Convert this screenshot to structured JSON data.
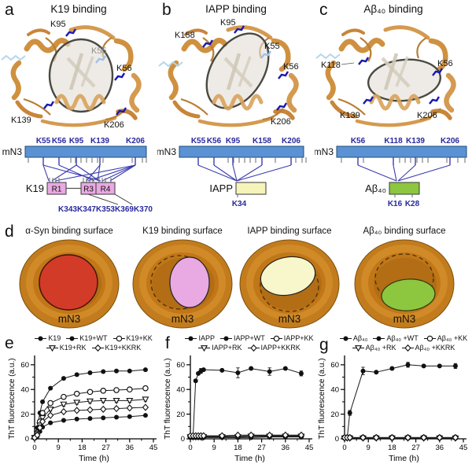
{
  "figure_type": "multi-panel scientific figure",
  "panel_letters": [
    "a",
    "b",
    "c",
    "d",
    "e",
    "f",
    "g"
  ],
  "colors": {
    "bar_blue": "#5b92d4",
    "bar_border": "#1f4e79",
    "line_blue": "#3b3bb0",
    "residue_blue": "#28289e",
    "ribbon_orange": "#d59a50",
    "k19_pink": "#e9a9e2",
    "iapp_yellow": "#f6f3bb",
    "abeta_green": "#8dc63f",
    "donut_orange": "#c8831f",
    "alpha_syn_red": "#d23b28",
    "highlight_ellipse_stroke": "#4a4a42"
  },
  "panel_a": {
    "title": "K19 binding",
    "structure_labels": [
      "K95",
      "K55",
      "K56",
      "K139",
      "K206"
    ],
    "schematic": {
      "protein_label": "mN3",
      "residues": [
        "K55",
        "K56",
        "K95",
        "K139",
        "K206"
      ],
      "ligand_label": "K19",
      "domains": [
        "R1",
        "R3",
        "R4"
      ],
      "bottom_labels": [
        "K343",
        "K347",
        "K353",
        "K369",
        "K370"
      ]
    }
  },
  "panel_b": {
    "title": "IAPP binding",
    "structure_labels": [
      "K95",
      "K158",
      "K55",
      "K56",
      "K206"
    ],
    "schematic": {
      "protein_label": "mN3",
      "residues": [
        "K55",
        "K56",
        "K95",
        "K158",
        "K206"
      ],
      "ligand_label": "IAPP",
      "bottom_labels": [
        "K34"
      ]
    }
  },
  "panel_c": {
    "title": "Aβ₄₀ binding",
    "structure_labels": [
      "K118",
      "K56",
      "K139",
      "K206"
    ],
    "schematic": {
      "protein_label": "mN3",
      "residues": [
        "K56",
        "K118",
        "K139",
        "K206"
      ],
      "ligand_label": "Aβ₄₀",
      "bottom_labels": [
        "K16",
        "K28"
      ]
    }
  },
  "panel_d": {
    "items": [
      {
        "title": "α-Syn binding surface",
        "core_label": "mN3",
        "surface_color": "#d23b28",
        "variant": "alpha"
      },
      {
        "title": "K19 binding surface",
        "core_label": "mN3",
        "surface_color": "#e9a9e2",
        "variant": "k19"
      },
      {
        "title": "IAPP binding surface",
        "core_label": "mN3",
        "surface_color": "#f8f7cb",
        "variant": "iapp"
      },
      {
        "title": "Aβ₄₀ binding surface",
        "core_label": "mN3",
        "surface_color": "#8dc63f",
        "variant": "abeta"
      }
    ]
  },
  "chart_data": [
    {
      "panel": "e",
      "type": "line",
      "xlabel": "Time (h)",
      "ylabel": "ThT fluorescence (a.u.)",
      "xlim": [
        0,
        45
      ],
      "ylim": [
        0,
        65
      ],
      "xticks": [
        0,
        9,
        18,
        27,
        36,
        45
      ],
      "yticks": [
        0,
        20,
        40,
        60
      ],
      "x": [
        0,
        1,
        2,
        3,
        6,
        11,
        16,
        21,
        26,
        31,
        36,
        42
      ],
      "series": [
        {
          "name": "K19",
          "marker": "circle-filled",
          "values": [
            1,
            9,
            21,
            30,
            41,
            49,
            52,
            53.5,
            54.5,
            55,
            55,
            56
          ]
        },
        {
          "name": "K19+WT",
          "marker": "circle-filled",
          "values": [
            1,
            2,
            6,
            9.5,
            13,
            15,
            16,
            16.5,
            17,
            17.5,
            18,
            19
          ]
        },
        {
          "name": "K19+KK",
          "marker": "circle-open",
          "values": [
            1,
            5,
            14,
            21,
            29,
            34,
            36.5,
            38,
            39,
            39.5,
            40,
            41
          ],
          "err": [
            0,
            0,
            0,
            0,
            1.5,
            1.5,
            1.5,
            1.5,
            1.5,
            1.5,
            1.5,
            1.5
          ]
        },
        {
          "name": "K19+RK",
          "marker": "triangle-open",
          "values": [
            1,
            4,
            11,
            17,
            24,
            28,
            29.5,
            30.5,
            31,
            31,
            31,
            32
          ],
          "err": [
            0,
            0,
            0,
            0,
            1.5,
            1.5,
            1.5,
            1.5,
            1.5,
            1.5,
            1.5,
            1.5
          ]
        },
        {
          "name": "K19+KKRK",
          "marker": "diamond-open",
          "values": [
            1,
            3,
            9,
            14,
            19,
            22,
            23,
            23.5,
            24,
            24.5,
            25,
            25.5
          ]
        }
      ],
      "legend_rows": [
        [
          0,
          1,
          2
        ],
        [
          3,
          4
        ]
      ]
    },
    {
      "panel": "f",
      "type": "line",
      "xlabel": "Time (h)",
      "ylabel": "ThT fluorescence (a.u.)",
      "xlim": [
        0,
        45
      ],
      "ylim": [
        0,
        65
      ],
      "xticks": [
        0,
        9,
        18,
        27,
        36,
        45
      ],
      "yticks": [
        0,
        20,
        40,
        60
      ],
      "x": [
        0,
        1,
        2,
        3,
        4,
        5,
        12,
        18,
        23,
        30,
        36,
        42
      ],
      "series": [
        {
          "name": "IAPP",
          "marker": "circle-filled",
          "values": [
            1,
            2,
            47,
            53,
            55,
            56,
            55.5,
            53.5,
            57,
            54.5,
            57,
            53
          ],
          "err": [
            0,
            0,
            0,
            1,
            2,
            1,
            1,
            4,
            1,
            3,
            1,
            2
          ]
        },
        {
          "name": "IAPP+WT",
          "marker": "circle-filled",
          "values": [
            1,
            1,
            1,
            1,
            1,
            1,
            1,
            1,
            1,
            1.5,
            1.5,
            1.5
          ]
        },
        {
          "name": "IAPP+KK",
          "marker": "circle-open",
          "values": [
            2,
            2,
            2,
            2,
            2,
            2,
            2,
            2,
            2.5,
            2.5,
            2.5,
            2.5
          ]
        },
        {
          "name": "IAPP+RK",
          "marker": "triangle-open",
          "values": [
            1.5,
            1.5,
            1.5,
            1.5,
            1.5,
            1.5,
            1.5,
            1.5,
            2,
            2,
            2,
            2
          ]
        },
        {
          "name": "IAPP+KKRK",
          "marker": "diamond-open",
          "values": [
            2.5,
            2.5,
            2.5,
            2.5,
            2.5,
            2.5,
            2.5,
            3,
            3,
            3,
            3,
            3
          ]
        }
      ],
      "legend_rows": [
        [
          0,
          1,
          2
        ],
        [
          3,
          4
        ]
      ]
    },
    {
      "panel": "g",
      "type": "line",
      "xlabel": "Time (h)",
      "ylabel": "ThT fluorescence (a.u.)",
      "xlim": [
        0,
        45
      ],
      "ylim": [
        0,
        65
      ],
      "xticks": [
        0,
        9,
        18,
        27,
        36,
        45
      ],
      "yticks": [
        0,
        20,
        40,
        60
      ],
      "x": [
        0,
        1,
        2,
        7,
        12,
        18,
        24,
        30,
        36,
        42
      ],
      "series": [
        {
          "name": "Aβ₄₀",
          "marker": "circle-filled",
          "values": [
            0.5,
            1,
            21,
            55,
            54,
            57,
            60,
            59,
            59,
            59
          ],
          "err": [
            0,
            0,
            2,
            3,
            1,
            1,
            2,
            1,
            1,
            2
          ]
        },
        {
          "name": "Aβ₄₀ +WT",
          "marker": "circle-filled",
          "values": [
            0.5,
            0.5,
            0.5,
            0.5,
            0.5,
            0.5,
            0.5,
            0.5,
            0.5,
            0.5
          ]
        },
        {
          "name": "Aβ₄₀ +KK",
          "marker": "circle-open",
          "values": [
            1,
            1,
            1,
            1,
            1,
            1,
            1,
            1,
            1,
            1
          ]
        },
        {
          "name": "Aβ₄₀ +RK",
          "marker": "triangle-open",
          "values": [
            0.5,
            0.5,
            0.5,
            0.5,
            0.5,
            0.5,
            0.5,
            0.5,
            0.5,
            0.5
          ]
        },
        {
          "name": "Aβ₄₀ +KKRK",
          "marker": "diamond-open",
          "values": [
            1,
            1,
            1,
            1,
            1,
            1,
            1,
            1,
            1,
            1
          ]
        }
      ],
      "legend_rows": [
        [
          0,
          1,
          2
        ],
        [
          3,
          4
        ]
      ]
    }
  ]
}
